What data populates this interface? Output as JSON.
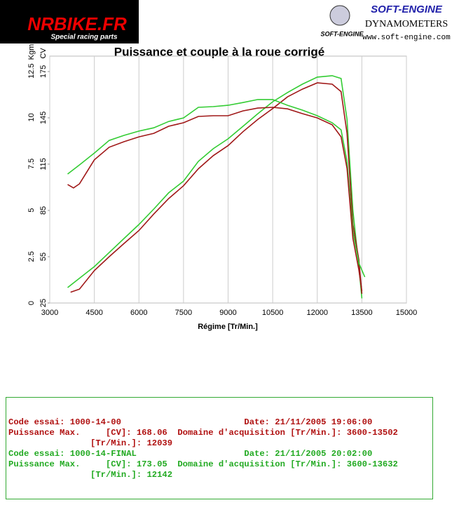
{
  "logos": {
    "left_title": "NRBIKE.FR",
    "left_subtitle": "Special racing parts",
    "right_brand": "SOFT-ENGINE",
    "right_small": "SOFT-ENGINE",
    "right_line": "DYNAMOMETERS",
    "right_url": "www.soft-engine.com"
  },
  "chart_data": {
    "type": "line",
    "title": "Puissance et couple à la roue corrigé",
    "xlabel": "Régime [Tr/Min.]",
    "ylabel": "CV",
    "y2label": "Kgm",
    "xlim": [
      3000,
      15000
    ],
    "xticks": [
      3000,
      4500,
      6000,
      7500,
      9000,
      10500,
      12000,
      13500,
      15000
    ],
    "ylim": [
      25,
      185
    ],
    "yticks": [
      25,
      55,
      85,
      115,
      145,
      175
    ],
    "y2lim": [
      0,
      13.3
    ],
    "y2ticks": [
      0,
      2.5,
      5,
      7.5,
      10,
      12.5
    ],
    "grid": "x",
    "series": [
      {
        "color": "#33cc33",
        "x": [
          3600,
          4500,
          5000,
          5500,
          6000,
          6500,
          7000,
          7500,
          8000,
          8500,
          9000,
          9500,
          10000,
          10500,
          11000,
          11500,
          12000,
          12500,
          12800,
          13000,
          13200,
          13400,
          13500
        ],
        "values": [
          35,
          48.6,
          57.7,
          66.8,
          75.9,
          85.9,
          96.4,
          104,
          116.8,
          125,
          131.4,
          139.5,
          147.7,
          155.4,
          161.4,
          166.8,
          171.4,
          172.3,
          170.5,
          144,
          85,
          48.6,
          28
        ]
      },
      {
        "color": "#a01818",
        "x": [
          3700,
          4000,
          4500,
          5000,
          5500,
          6000,
          6500,
          7000,
          7500,
          8000,
          8500,
          9000,
          9500,
          10000,
          10500,
          11000,
          11500,
          12000,
          12500,
          12800,
          13000,
          13200,
          13400,
          13500
        ],
        "values": [
          32,
          34,
          46,
          55,
          63.6,
          72,
          82.7,
          92.7,
          101,
          112,
          120.5,
          127,
          136,
          144,
          151,
          158.6,
          163.6,
          167.7,
          166.8,
          162,
          135,
          76,
          53,
          31
        ]
      },
      {
        "color": "#33cc33",
        "axis": "y2",
        "x": [
          3600,
          4000,
          4500,
          5000,
          5500,
          6000,
          6500,
          7000,
          7500,
          8000,
          8500,
          9000,
          9500,
          10000,
          10500,
          11000,
          11500,
          12000,
          12500,
          12800,
          13000,
          13200,
          13400,
          13600
        ],
        "values": [
          6.95,
          7.44,
          8.08,
          8.76,
          9.03,
          9.26,
          9.44,
          9.78,
          9.97,
          10.54,
          10.58,
          10.65,
          10.8,
          10.96,
          10.96,
          10.65,
          10.39,
          10.09,
          9.71,
          9.33,
          7.63,
          3.85,
          2.15,
          1.4
        ]
      },
      {
        "color": "#a01818",
        "axis": "y2",
        "x": [
          3600,
          3800,
          4000,
          4500,
          5000,
          5500,
          6000,
          6500,
          7000,
          7500,
          8000,
          8500,
          9000,
          9500,
          10000,
          10500,
          11000,
          11500,
          12000,
          12500,
          12800,
          13000,
          13200,
          13400,
          13500
        ],
        "values": [
          6.38,
          6.2,
          6.42,
          7.71,
          8.39,
          8.69,
          8.95,
          9.14,
          9.52,
          9.71,
          10.05,
          10.09,
          10.09,
          10.35,
          10.5,
          10.54,
          10.46,
          10.2,
          9.97,
          9.6,
          8.95,
          7.25,
          3.48,
          1.78,
          0.64
        ]
      }
    ]
  },
  "info": {
    "rows": [
      {
        "color": "#b01010",
        "lines": [
          "Code essai: 1000-14-00                        Date: 21/11/2005 19:06:00",
          "Puissance Max.     [CV]: 168.06  Domaine d'acquisition [Tr/Min.]: 3600-13502",
          "                [Tr/Min.]: 12039"
        ]
      },
      {
        "color": "#22aa22",
        "lines": [
          "Code essai: 1000-14-FINAL                     Date: 21/11/2005 20:02:00",
          "Puissance Max.     [CV]: 173.05  Domaine d'acquisition [Tr/Min.]: 3600-13632",
          "                [Tr/Min.]: 12142"
        ]
      }
    ]
  }
}
